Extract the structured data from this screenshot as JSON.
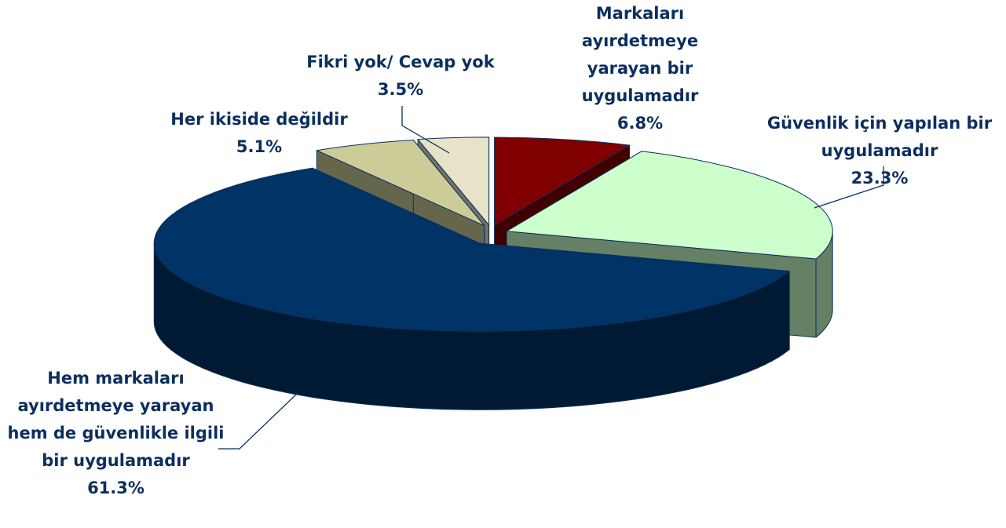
{
  "chart_data": {
    "type": "pie3d",
    "categories": [
      "Markaları ayırdetmeye yarayan bir uygulamadır",
      "Güvenlik için yapılan bir uygulamadır",
      "Hem markaları ayırdetmeye yarayan hem de güvenlikle ilgili bir uygulamadır",
      "Her ikiside değildir",
      "Fikri yok/ Cevap yok"
    ],
    "values": [
      6.8,
      23.3,
      61.3,
      5.1,
      3.5
    ],
    "value_labels": [
      "6.8%",
      "23.3%",
      "61.3%",
      "5.1%",
      "3.5%"
    ],
    "colors": [
      "#800000",
      "#ccffcc",
      "#003366",
      "#cccc99",
      "#e6e3c8"
    ]
  }
}
